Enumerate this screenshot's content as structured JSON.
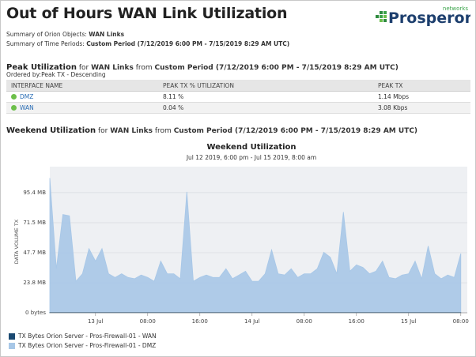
{
  "header": {
    "title": "Out of Hours WAN Link Utilization",
    "logo": "Prosperon",
    "logo_tag": "networks"
  },
  "summary": [
    {
      "label": "Summary of Orion Objects:",
      "value": "WAN Links"
    },
    {
      "label": "Summary of Time Periods:",
      "value": "Custom Period (7/12/2019 6:00 PM - 7/15/2019 8:29 AM UTC)"
    }
  ],
  "peak": {
    "heading": "Peak Utilization",
    "for": "for",
    "objects": "WAN Links",
    "from": "from",
    "period": "Custom Period (7/12/2019 6:00 PM - 7/15/2019 8:29 AM UTC)",
    "ordered": "Ordered by:Peak TX - Descending",
    "table": {
      "columns": [
        "INTERFACE NAME",
        "PEAK TX % UTILIZATION",
        "PEAK TX"
      ],
      "rows": [
        [
          "DMZ",
          "8.11 %",
          "1.14 Mbps"
        ],
        [
          "WAN",
          "0.04 %",
          "3.08 Kbps"
        ]
      ]
    }
  },
  "weekend": {
    "heading": "Weekend Utilization",
    "for": "for",
    "objects": "WAN Links",
    "from": "from",
    "period": "Custom Period (7/12/2019 6:00 PM - 7/15/2019 8:29 AM UTC)"
  },
  "chart_data": {
    "type": "area",
    "title": "Weekend Utilization",
    "subtitle": "Jul 12 2019, 6:00 pm - Jul 15 2019, 8:00 am",
    "y_label": "DATA VOLUME TX",
    "x": [
      "2019-07-12 17:00",
      "2019-07-12 18:00",
      "2019-07-12 19:00",
      "2019-07-12 20:00",
      "2019-07-12 21:00",
      "2019-07-12 22:00",
      "2019-07-12 23:00",
      "2019-07-13 00:00",
      "2019-07-13 01:00",
      "2019-07-13 02:00",
      "2019-07-13 03:00",
      "2019-07-13 04:00",
      "2019-07-13 05:00",
      "2019-07-13 06:00",
      "2019-07-13 07:00",
      "2019-07-13 08:00",
      "2019-07-13 09:00",
      "2019-07-13 10:00",
      "2019-07-13 11:00",
      "2019-07-13 12:00",
      "2019-07-13 13:00",
      "2019-07-13 14:00",
      "2019-07-13 15:00",
      "2019-07-13 16:00",
      "2019-07-13 17:00",
      "2019-07-13 18:00",
      "2019-07-13 19:00",
      "2019-07-13 20:00",
      "2019-07-13 21:00",
      "2019-07-13 22:00",
      "2019-07-13 23:00",
      "2019-07-14 00:00",
      "2019-07-14 01:00",
      "2019-07-14 02:00",
      "2019-07-14 03:00",
      "2019-07-14 04:00",
      "2019-07-14 05:00",
      "2019-07-14 06:00",
      "2019-07-14 07:00",
      "2019-07-14 08:00",
      "2019-07-14 09:00",
      "2019-07-14 10:00",
      "2019-07-14 11:00",
      "2019-07-14 12:00",
      "2019-07-14 13:00",
      "2019-07-14 14:00",
      "2019-07-14 15:00",
      "2019-07-14 16:00",
      "2019-07-14 17:00",
      "2019-07-14 18:00",
      "2019-07-14 19:00",
      "2019-07-14 20:00",
      "2019-07-14 21:00",
      "2019-07-14 22:00",
      "2019-07-14 23:00",
      "2019-07-15 00:00",
      "2019-07-15 01:00",
      "2019-07-15 02:00",
      "2019-07-15 03:00",
      "2019-07-15 04:00",
      "2019-07-15 05:00",
      "2019-07-15 06:00",
      "2019-07-15 07:00",
      "2019-07-15 08:00"
    ],
    "xlim": [
      "2019-07-12 17:00",
      "2019-07-15 09:00"
    ],
    "xticks": [
      {
        "value": "2019-07-13 00:00",
        "label": "13 Jul"
      },
      {
        "value": "2019-07-13 08:00",
        "label": "08:00"
      },
      {
        "value": "2019-07-13 16:00",
        "label": "16:00"
      },
      {
        "value": "2019-07-14 00:00",
        "label": "14 Jul"
      },
      {
        "value": "2019-07-14 08:00",
        "label": "08:00"
      },
      {
        "value": "2019-07-14 16:00",
        "label": "16:00"
      },
      {
        "value": "2019-07-15 00:00",
        "label": "15 Jul"
      },
      {
        "value": "2019-07-15 08:00",
        "label": "08:00"
      }
    ],
    "ylim": [
      0,
      116
    ],
    "yticks": [
      {
        "value": 0,
        "label": "0 bytes"
      },
      {
        "value": 23.8,
        "label": "23.8 MB"
      },
      {
        "value": 47.7,
        "label": "47.7 MB"
      },
      {
        "value": 71.5,
        "label": "71.5 MB"
      },
      {
        "value": 95.4,
        "label": "95.4 MB"
      }
    ],
    "grid": true,
    "series": [
      {
        "name": "TX Bytes Orion Server - Pros-Firewall-01 - WAN",
        "color": "#1b4a72",
        "values": [
          0.2,
          0.2,
          0.2,
          0.2,
          0.2,
          0.2,
          0.2,
          0.2,
          0.2,
          0.2,
          0.2,
          0.2,
          0.2,
          0.2,
          0.2,
          0.2,
          0.2,
          0.2,
          0.2,
          0.2,
          0.2,
          0.2,
          0.2,
          0.2,
          0.2,
          0.2,
          0.2,
          0.2,
          0.2,
          0.2,
          0.2,
          0.2,
          0.2,
          0.2,
          0.2,
          0.2,
          0.2,
          0.2,
          0.2,
          0.2,
          0.2,
          0.2,
          0.2,
          0.2,
          0.2,
          0.2,
          0.2,
          0.2,
          0.2,
          0.2,
          0.2,
          0.2,
          0.2,
          0.2,
          0.2,
          0.2,
          0.2,
          0.2,
          0.2,
          0.2,
          0.2,
          0.2,
          0.2,
          0.2
        ]
      },
      {
        "name": "TX Bytes Orion Server - Pros-Firewall-01 - DMZ",
        "color": "#a7c7e7",
        "values": [
          107,
          35,
          78,
          77,
          25,
          31,
          51,
          41,
          51,
          31,
          28,
          31,
          28,
          27,
          30,
          28,
          25,
          41,
          31,
          31,
          27,
          96,
          25,
          28,
          30,
          28,
          28,
          35,
          27,
          30,
          33,
          25,
          25,
          31,
          50,
          31,
          30,
          35,
          28,
          31,
          31,
          35,
          48,
          44,
          31,
          80,
          33,
          38,
          36,
          31,
          33,
          41,
          28,
          27,
          30,
          31,
          41,
          27,
          53,
          31,
          27,
          30,
          28,
          47
        ]
      }
    ],
    "legend": "bottom-left"
  }
}
